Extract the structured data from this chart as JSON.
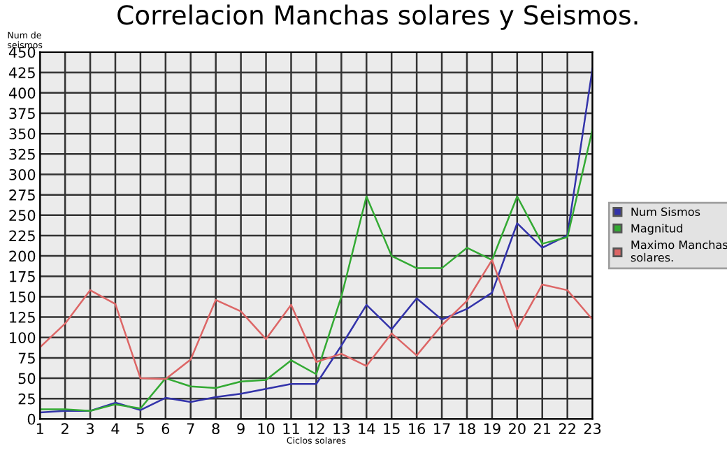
{
  "chart_data": {
    "type": "line",
    "title": "Correlacion Manchas solares y Seismos.",
    "xlabel": "Ciclos solares",
    "ylabel": "Num de\nseismos",
    "categories": [
      "1",
      "2",
      "3",
      "4",
      "5",
      "6",
      "7",
      "8",
      "9",
      "10",
      "11",
      "12",
      "13",
      "14",
      "15",
      "16",
      "17",
      "18",
      "19",
      "20",
      "21",
      "22",
      "23"
    ],
    "series": [
      {
        "name": "Num Sismos",
        "color": "#3333aa",
        "values": [
          8,
          10,
          10,
          20,
          11,
          26,
          21,
          27,
          31,
          37,
          43,
          43,
          90,
          140,
          110,
          148,
          122,
          135,
          155,
          240,
          210,
          225,
          430
        ]
      },
      {
        "name": "Magnitud",
        "color": "#33aa33",
        "values": [
          12,
          12,
          10,
          18,
          13,
          50,
          40,
          38,
          46,
          48,
          72,
          55,
          150,
          273,
          200,
          185,
          185,
          210,
          195,
          273,
          215,
          223,
          355
        ]
      },
      {
        "name": "Maximo Manchas\nsolares.",
        "color": "#dd6666",
        "values": [
          88,
          117,
          158,
          141,
          50,
          49,
          73,
          146,
          132,
          98,
          140,
          70,
          80,
          65,
          105,
          78,
          115,
          145,
          195,
          110,
          165,
          158,
          122
        ]
      }
    ],
    "ylim": [
      0,
      450
    ],
    "yticks": [
      0,
      25,
      50,
      75,
      100,
      125,
      150,
      175,
      200,
      225,
      250,
      275,
      300,
      325,
      350,
      375,
      400,
      425,
      450
    ],
    "grid": true,
    "legend": "right",
    "marker": "none",
    "line_style": "solid"
  }
}
